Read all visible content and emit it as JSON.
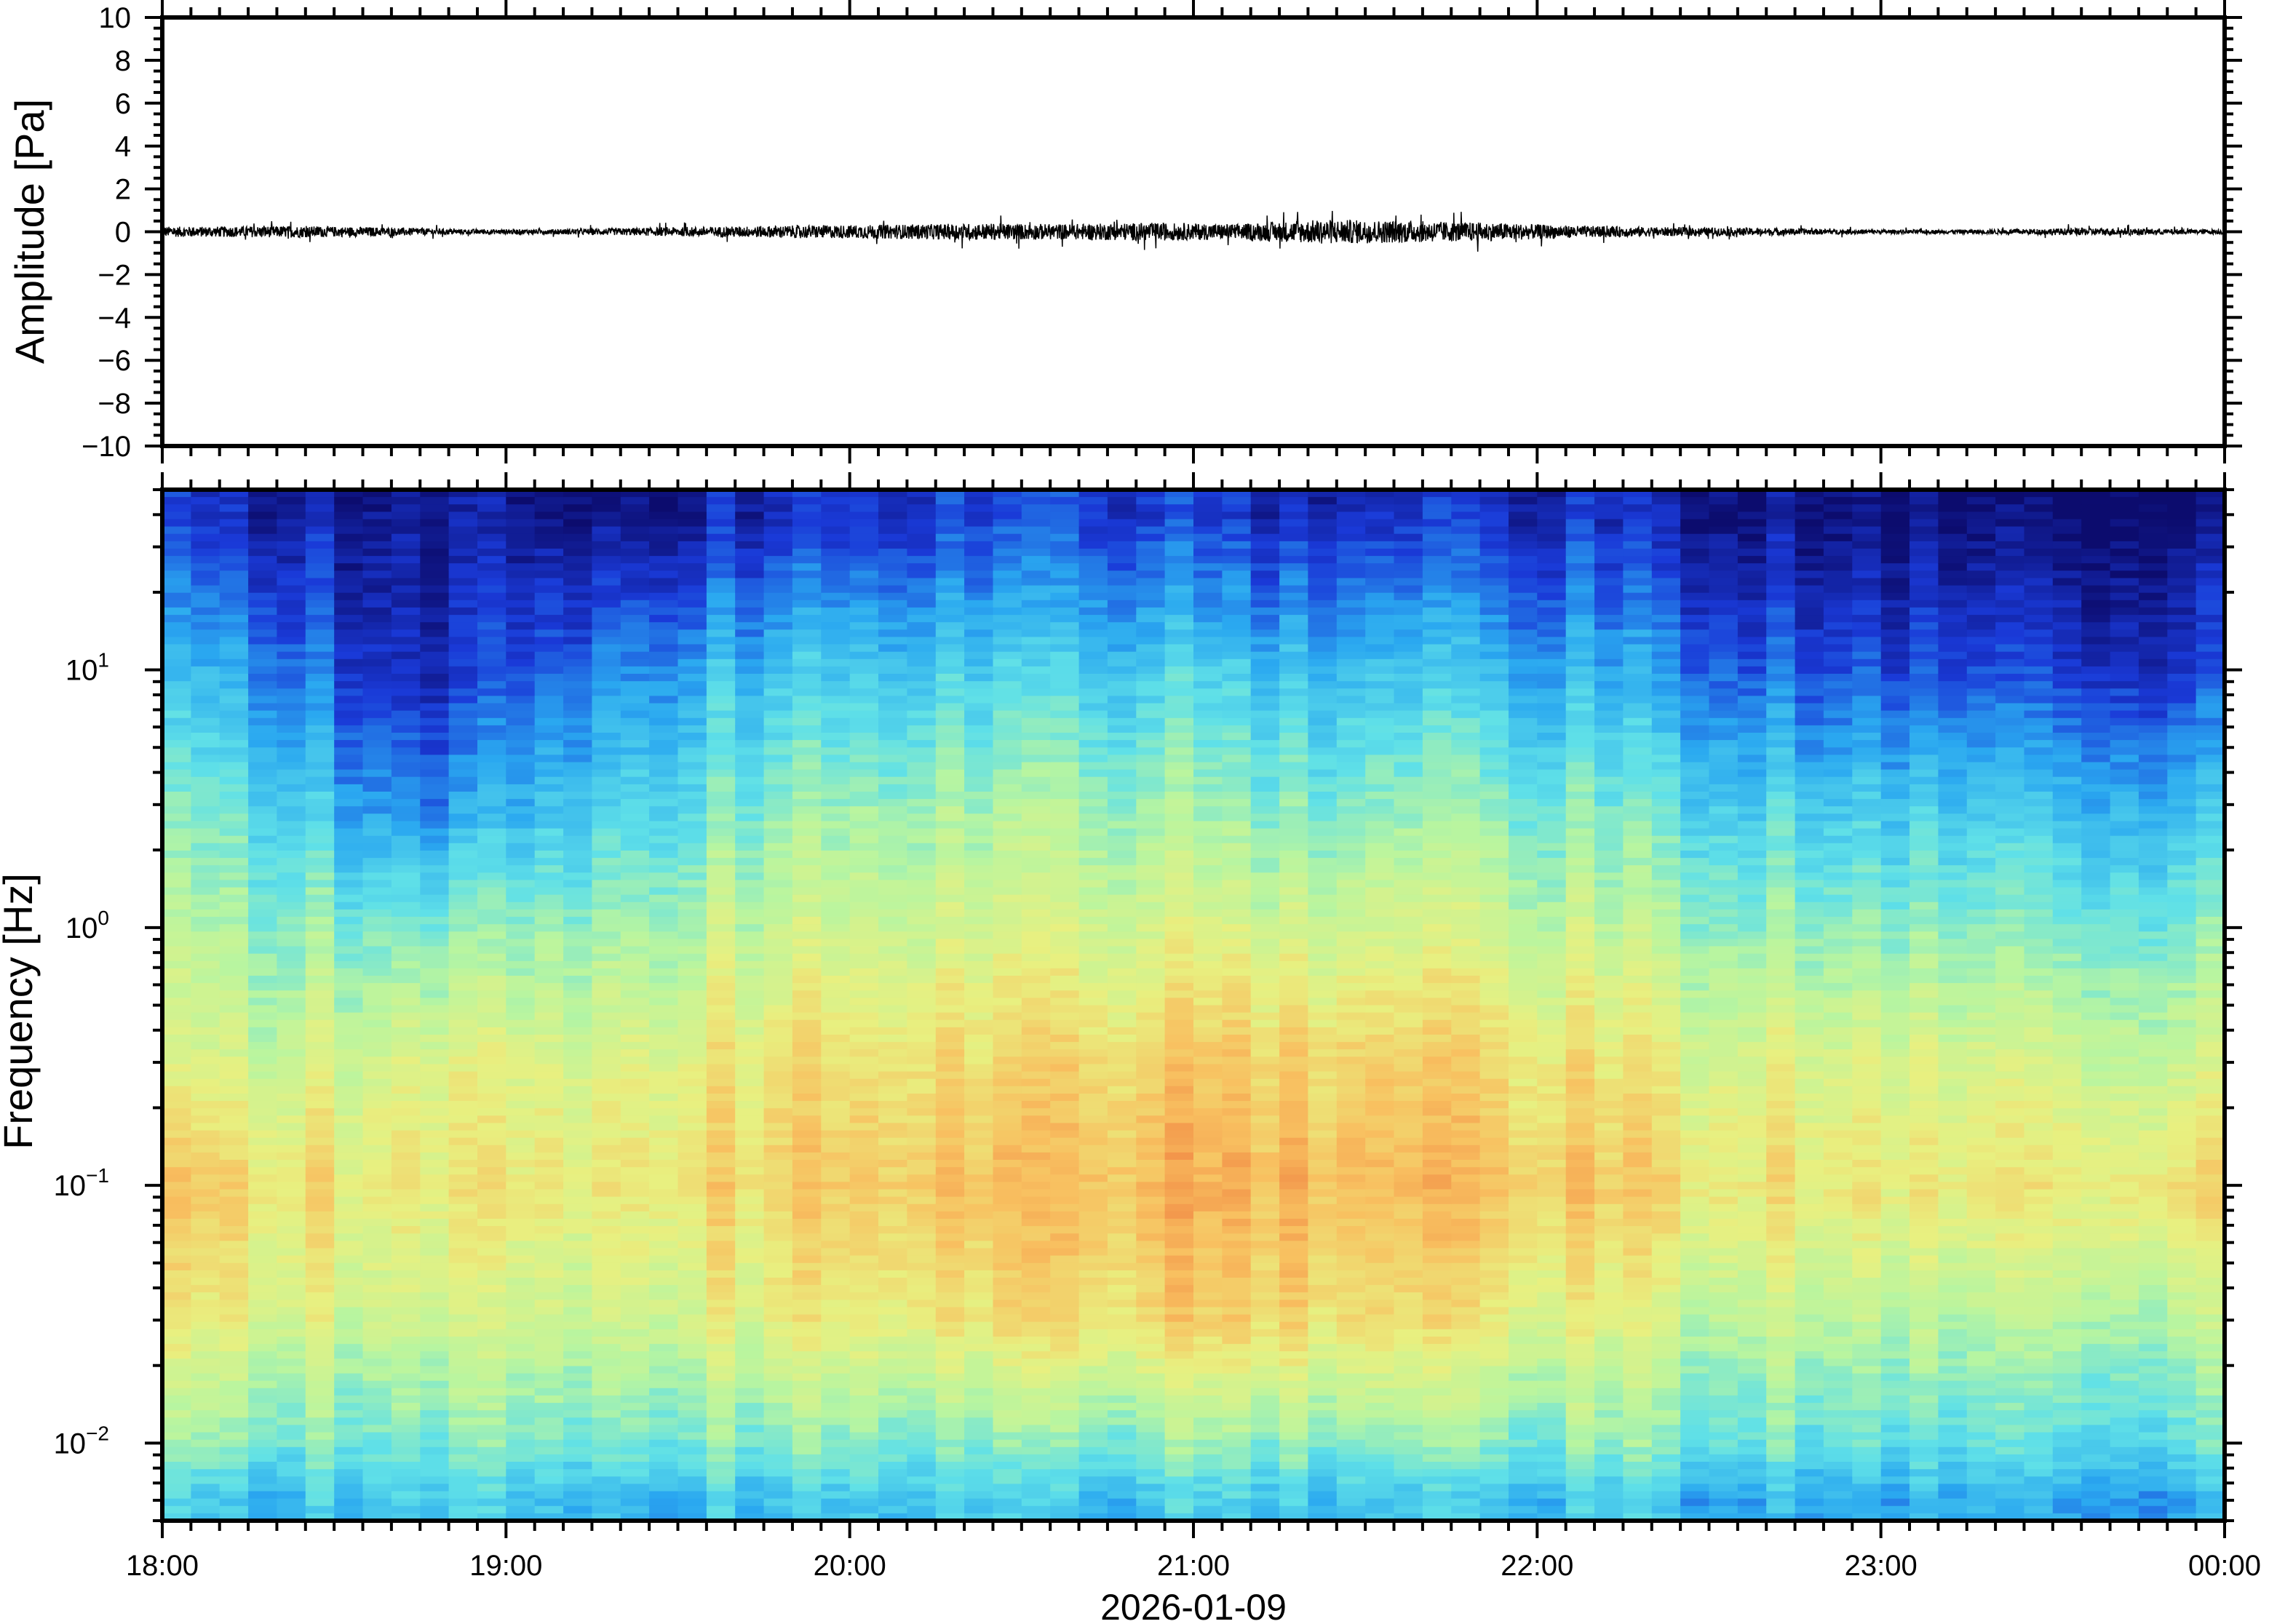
{
  "chart_data": [
    {
      "type": "line",
      "ylabel": "Amplitude [Pa]",
      "ylim": [
        -10,
        10
      ],
      "yticks": [
        "10",
        "8",
        "6",
        "4",
        "2",
        "0",
        "−2",
        "−4",
        "−6",
        "−8",
        "−10"
      ],
      "ytick_values": [
        10,
        8,
        6,
        4,
        2,
        0,
        -2,
        -4,
        -6,
        -8,
        -10
      ],
      "xlim": [
        "18:00",
        "00:00"
      ],
      "envelope_interval_minutes": 15,
      "amplitude_envelope_pa": [
        0.4,
        0.45,
        0.35,
        0.2,
        0.2,
        0.3,
        0.4,
        0.5,
        0.55,
        0.65,
        0.6,
        0.7,
        0.6,
        0.95,
        0.85,
        0.7,
        0.45,
        0.35,
        0.3,
        0.2,
        0.15,
        0.2,
        0.3,
        0.2
      ],
      "line_color": "#000000"
    },
    {
      "type": "heatmap",
      "ylabel": "Frequency [Hz]",
      "xlabel": "2026-01-09",
      "yscale": "log",
      "ylim": [
        0.005,
        50
      ],
      "yticks": [
        {
          "base": "10",
          "exp": "1",
          "value": 10
        },
        {
          "base": "10",
          "exp": "0",
          "value": 1
        },
        {
          "base": "10",
          "exp": "−1",
          "value": 0.1
        },
        {
          "base": "10",
          "exp": "−2",
          "value": 0.01
        }
      ],
      "xticks": [
        "18:00",
        "19:00",
        "20:00",
        "21:00",
        "22:00",
        "23:00",
        "00:00"
      ],
      "time_bins": [
        "18:00",
        "18:30",
        "19:00",
        "19:30",
        "20:00",
        "20:30",
        "21:00",
        "21:30",
        "22:00",
        "22:30",
        "23:00",
        "23:30"
      ],
      "freq_bands_hz": [
        40,
        10,
        3,
        1,
        0.3,
        0.1,
        0.03,
        0.01,
        0.006
      ],
      "relative_power": [
        [
          0.1,
          0.3,
          0.45,
          0.55,
          0.65,
          0.8,
          0.7,
          0.5,
          0.35
        ],
        [
          0.02,
          0.05,
          0.2,
          0.45,
          0.65,
          0.7,
          0.6,
          0.45,
          0.35
        ],
        [
          0.05,
          0.25,
          0.4,
          0.55,
          0.7,
          0.75,
          0.65,
          0.5,
          0.35
        ],
        [
          0.1,
          0.35,
          0.5,
          0.62,
          0.75,
          0.8,
          0.7,
          0.5,
          0.35
        ],
        [
          0.15,
          0.38,
          0.55,
          0.65,
          0.78,
          0.85,
          0.75,
          0.5,
          0.38
        ],
        [
          0.15,
          0.38,
          0.55,
          0.66,
          0.8,
          0.87,
          0.78,
          0.5,
          0.35
        ],
        [
          0.1,
          0.35,
          0.5,
          0.65,
          0.82,
          0.88,
          0.8,
          0.52,
          0.38
        ],
        [
          0.12,
          0.35,
          0.52,
          0.66,
          0.8,
          0.86,
          0.75,
          0.5,
          0.35
        ],
        [
          0.08,
          0.28,
          0.45,
          0.58,
          0.72,
          0.8,
          0.65,
          0.5,
          0.35
        ],
        [
          0.03,
          0.18,
          0.38,
          0.52,
          0.68,
          0.75,
          0.6,
          0.45,
          0.3
        ],
        [
          0.03,
          0.18,
          0.38,
          0.52,
          0.68,
          0.75,
          0.6,
          0.45,
          0.33
        ],
        [
          0.03,
          0.15,
          0.35,
          0.5,
          0.65,
          0.78,
          0.6,
          0.45,
          0.3
        ]
      ],
      "colormap": [
        "#0c0c6e",
        "#1a3ad8",
        "#2aa8f0",
        "#5fe0e8",
        "#b8f5a0",
        "#e8f080",
        "#f8c060",
        "#f08040"
      ]
    }
  ]
}
